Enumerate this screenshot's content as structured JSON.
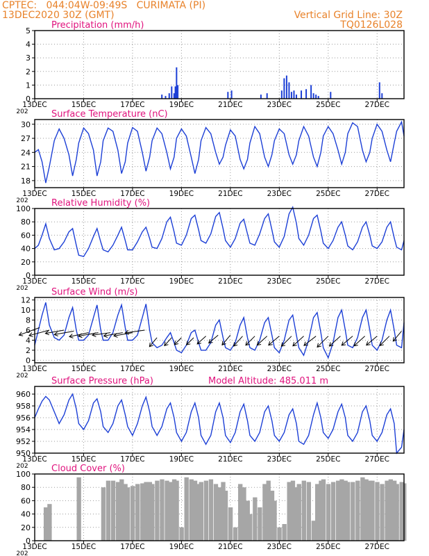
{
  "header": {
    "line1": "CPTEC:   044:04W-09:49S   CURIMATA (PI)",
    "line2": "13DEC2020 30Z (GMT)",
    "grid_note": "Vertical Grid Line: 30Z",
    "code": "TQ0126L028"
  },
  "colors": {
    "line": "#1c3fd6",
    "bar": "#1c3fd6",
    "title": "#e0127d",
    "header": "#e8822a",
    "cloud": "#a6a6a6",
    "grid": "#9a9a9a"
  },
  "x_axis": {
    "tick_labels": [
      "13DEC",
      "15DEC",
      "17DEC",
      "19DEC",
      "21DEC",
      "23DEC",
      "25DEC",
      "27DEC"
    ],
    "tick_days": [
      13,
      15,
      17,
      19,
      21,
      23,
      25,
      27
    ],
    "start_day": 13,
    "end_day": 28.1,
    "year_fragment": "202"
  },
  "chart_data": [
    {
      "type": "bar",
      "title": "Precipitation (mm/h)",
      "ylim": [
        0,
        5
      ],
      "yticks": [
        0,
        1,
        2,
        3,
        4,
        5
      ],
      "grid": true,
      "x": [
        18.2,
        18.35,
        18.5,
        18.6,
        18.7,
        18.75,
        18.8,
        18.85,
        20.9,
        21.05,
        22.25,
        22.5,
        23.1,
        23.2,
        23.3,
        23.4,
        23.5,
        23.6,
        23.7,
        23.9,
        24.1,
        24.3,
        24.4,
        24.5,
        24.6,
        25.1,
        27.1,
        27.2
      ],
      "values": [
        0.3,
        0.2,
        0.4,
        0.9,
        0.4,
        0.9,
        2.3,
        1.0,
        0.5,
        0.6,
        0.3,
        0.4,
        0.6,
        1.5,
        1.7,
        1.2,
        0.5,
        0.6,
        0.3,
        0.6,
        0.7,
        1.0,
        0.4,
        0.3,
        0.2,
        0.5,
        1.2,
        0.4
      ]
    },
    {
      "type": "line",
      "title": "Surface Temperature (nC)",
      "ylim": [
        16.5,
        31
      ],
      "yticks": [
        18,
        21,
        24,
        27,
        30
      ],
      "grid": true,
      "x": [
        13.0,
        13.15,
        13.3,
        13.45,
        13.6,
        13.8,
        14.0,
        14.2,
        14.4,
        14.55,
        14.7,
        14.8,
        15.0,
        15.2,
        15.4,
        15.55,
        15.7,
        15.8,
        16.0,
        16.2,
        16.4,
        16.55,
        16.7,
        16.8,
        17.0,
        17.2,
        17.4,
        17.55,
        17.7,
        17.8,
        18.0,
        18.2,
        18.4,
        18.55,
        18.7,
        18.8,
        19.0,
        19.2,
        19.4,
        19.55,
        19.7,
        19.8,
        20.0,
        20.2,
        20.4,
        20.55,
        20.7,
        20.8,
        21.0,
        21.2,
        21.4,
        21.55,
        21.7,
        21.8,
        22.0,
        22.2,
        22.4,
        22.55,
        22.7,
        22.8,
        23.0,
        23.2,
        23.4,
        23.55,
        23.7,
        23.8,
        24.0,
        24.2,
        24.4,
        24.55,
        24.7,
        24.8,
        25.0,
        25.2,
        25.4,
        25.55,
        25.7,
        25.8,
        26.0,
        26.2,
        26.4,
        26.55,
        26.7,
        26.8,
        27.0,
        27.2,
        27.4,
        27.55,
        27.7,
        27.8,
        28.0,
        28.1
      ],
      "values": [
        24.0,
        24.6,
        22.0,
        17.5,
        21.0,
        26.5,
        29.0,
        27.0,
        23.5,
        19.0,
        22.5,
        26.0,
        29.2,
        28.0,
        24.5,
        19.0,
        22.0,
        26.5,
        29.2,
        28.5,
        24.5,
        19.5,
        22.0,
        26.0,
        29.3,
        28.5,
        24.0,
        20.0,
        23.0,
        26.5,
        29.2,
        28.0,
        24.0,
        20.5,
        23.0,
        27.0,
        29.0,
        27.5,
        23.0,
        19.5,
        22.5,
        26.5,
        29.3,
        28.0,
        24.0,
        21.5,
        23.0,
        25.5,
        28.8,
        27.5,
        22.5,
        20.5,
        22.5,
        26.0,
        29.5,
        28.0,
        23.0,
        21.0,
        23.5,
        26.5,
        29.0,
        28.0,
        23.5,
        21.5,
        23.5,
        26.5,
        29.5,
        27.5,
        23.0,
        21.0,
        24.0,
        27.5,
        29.5,
        28.0,
        24.5,
        21.5,
        24.0,
        28.0,
        30.3,
        29.5,
        24.5,
        22.0,
        24.0,
        27.0,
        30.0,
        28.5,
        24.5,
        22.0,
        26.0,
        28.5,
        30.5,
        27.5
      ]
    },
    {
      "type": "line",
      "title": "Relative Humidity (%)",
      "ylim": [
        0,
        100
      ],
      "yticks": [
        0,
        20,
        40,
        60,
        80,
        100
      ],
      "grid": true,
      "x": [
        13.0,
        13.15,
        13.3,
        13.45,
        13.6,
        13.8,
        14.0,
        14.2,
        14.4,
        14.55,
        14.7,
        14.8,
        15.0,
        15.2,
        15.4,
        15.55,
        15.7,
        15.8,
        16.0,
        16.2,
        16.4,
        16.55,
        16.7,
        16.8,
        17.0,
        17.2,
        17.4,
        17.55,
        17.7,
        17.8,
        18.0,
        18.2,
        18.4,
        18.55,
        18.7,
        18.8,
        19.0,
        19.2,
        19.4,
        19.55,
        19.7,
        19.8,
        20.0,
        20.2,
        20.4,
        20.55,
        20.7,
        20.8,
        21.0,
        21.2,
        21.4,
        21.55,
        21.7,
        21.8,
        22.0,
        22.2,
        22.4,
        22.55,
        22.7,
        22.8,
        23.0,
        23.2,
        23.4,
        23.55,
        23.7,
        23.8,
        24.0,
        24.2,
        24.4,
        24.55,
        24.7,
        24.8,
        25.0,
        25.2,
        25.4,
        25.55,
        25.7,
        25.8,
        26.0,
        26.2,
        26.4,
        26.55,
        26.7,
        26.8,
        27.0,
        27.2,
        27.4,
        27.55,
        27.7,
        27.8,
        28.0,
        28.1
      ],
      "values": [
        40,
        45,
        60,
        77,
        55,
        38,
        40,
        50,
        65,
        70,
        45,
        30,
        28,
        40,
        58,
        70,
        50,
        38,
        35,
        45,
        60,
        72,
        52,
        38,
        38,
        50,
        65,
        72,
        55,
        42,
        40,
        55,
        80,
        87,
        65,
        48,
        45,
        60,
        85,
        90,
        68,
        52,
        48,
        62,
        88,
        94,
        70,
        52,
        42,
        55,
        78,
        84,
        62,
        48,
        45,
        62,
        85,
        92,
        68,
        50,
        42,
        58,
        92,
        102,
        78,
        55,
        45,
        60,
        85,
        90,
        66,
        48,
        40,
        52,
        72,
        80,
        60,
        44,
        38,
        50,
        72,
        80,
        60,
        44,
        40,
        50,
        72,
        80,
        56,
        42,
        38,
        52
      ]
    },
    {
      "type": "line",
      "title": "Surface Wind (m/s)",
      "ylim": [
        -0.5,
        12.5
      ],
      "yticks": [
        0,
        2,
        4,
        6,
        8,
        10,
        12
      ],
      "grid": true,
      "x": [
        13.0,
        13.15,
        13.3,
        13.45,
        13.6,
        13.8,
        14.0,
        14.2,
        14.4,
        14.55,
        14.7,
        14.8,
        15.0,
        15.2,
        15.4,
        15.55,
        15.7,
        15.8,
        16.0,
        16.2,
        16.4,
        16.55,
        16.7,
        16.8,
        17.0,
        17.2,
        17.4,
        17.55,
        17.7,
        17.8,
        18.0,
        18.2,
        18.4,
        18.55,
        18.7,
        18.8,
        19.0,
        19.2,
        19.4,
        19.55,
        19.7,
        19.8,
        20.0,
        20.2,
        20.4,
        20.55,
        20.7,
        20.8,
        21.0,
        21.2,
        21.4,
        21.55,
        21.7,
        21.8,
        22.0,
        22.2,
        22.4,
        22.55,
        22.7,
        22.8,
        23.0,
        23.2,
        23.4,
        23.55,
        23.7,
        23.8,
        24.0,
        24.2,
        24.4,
        24.55,
        24.7,
        24.8,
        25.0,
        25.2,
        25.4,
        25.55,
        25.7,
        25.8,
        26.0,
        26.2,
        26.4,
        26.55,
        26.7,
        26.8,
        27.0,
        27.2,
        27.4,
        27.55,
        27.7,
        27.8,
        28.0,
        28.1
      ],
      "values": [
        3.0,
        6.0,
        9.0,
        11.5,
        7.0,
        4.5,
        4.0,
        5.0,
        8.5,
        10.5,
        6.0,
        4.0,
        4.0,
        5.0,
        8.5,
        11.0,
        6.0,
        4.0,
        4.0,
        5.5,
        9.0,
        11.0,
        6.5,
        4.0,
        4.0,
        5.0,
        8.5,
        11.2,
        6.0,
        3.5,
        2.5,
        3.0,
        4.5,
        5.5,
        3.5,
        2.0,
        1.5,
        3.0,
        5.5,
        6.0,
        3.5,
        2.0,
        2.0,
        3.5,
        7.0,
        8.0,
        4.5,
        2.5,
        2.0,
        3.5,
        7.0,
        8.5,
        4.5,
        2.5,
        2.0,
        4.0,
        7.5,
        8.5,
        5.0,
        2.5,
        1.5,
        4.0,
        8.0,
        9.0,
        5.0,
        2.5,
        1.0,
        4.0,
        8.5,
        9.5,
        5.5,
        2.5,
        0.5,
        3.5,
        8.5,
        10.0,
        6.0,
        3.0,
        2.5,
        4.5,
        8.5,
        10.0,
        6.0,
        3.0,
        2.0,
        4.0,
        8.0,
        10.0,
        6.0,
        3.0,
        2.5,
        7.5
      ],
      "arrows": {
        "x": [
          13.2,
          13.6,
          14.2,
          14.6,
          15.2,
          15.6,
          16.1,
          16.6,
          17.0,
          17.5,
          18.0,
          18.6,
          19.0,
          19.5,
          20.0,
          20.5,
          21.0,
          21.5,
          22.0,
          22.5,
          23.0,
          23.5,
          24.0,
          24.5,
          25.0,
          25.5,
          26.0,
          26.5,
          27.0,
          27.5,
          28.0
        ],
        "speed": [
          7.5,
          7.2,
          6.5,
          6.8,
          6.7,
          6.9,
          6.3,
          6.6,
          6.5,
          6.8,
          4.0,
          3.7,
          3.4,
          3.5,
          4.0,
          4.2,
          4.4,
          4.6,
          4.4,
          4.6,
          4.8,
          4.9,
          5.0,
          5.2,
          5.3,
          5.1,
          4.9,
          5.0,
          4.8,
          4.6,
          4.5
        ],
        "dir": [
          70,
          75,
          80,
          80,
          78,
          80,
          82,
          80,
          80,
          82,
          40,
          42,
          45,
          45,
          48,
          50,
          40,
          42,
          45,
          48,
          50,
          45,
          48,
          52,
          45,
          48,
          50,
          48,
          50,
          45,
          40
        ],
        "y": [
          6.5,
          6.0,
          6.0,
          5.8,
          5.5,
          5.5,
          5.5,
          5.5,
          5.5,
          6.0,
          4.5,
          4.5,
          4.5,
          4.5,
          4.8,
          5.0,
          5.0,
          4.8,
          4.8,
          4.8,
          4.8,
          4.8,
          4.8,
          4.8,
          4.8,
          4.8,
          4.8,
          4.8,
          4.8,
          4.8,
          5.8
        ]
      }
    },
    {
      "type": "line",
      "title": "Surface Pressure (hPa)",
      "annotation": "Model Altitude: 485.011 m",
      "ylim": [
        950,
        961.3
      ],
      "yticks": [
        950,
        952,
        954,
        956,
        958,
        960
      ],
      "grid": true,
      "x": [
        13.0,
        13.15,
        13.3,
        13.45,
        13.6,
        13.8,
        14.0,
        14.2,
        14.4,
        14.55,
        14.7,
        14.8,
        15.0,
        15.2,
        15.4,
        15.55,
        15.7,
        15.8,
        16.0,
        16.2,
        16.4,
        16.55,
        16.7,
        16.8,
        17.0,
        17.2,
        17.4,
        17.55,
        17.7,
        17.8,
        18.0,
        18.2,
        18.4,
        18.55,
        18.7,
        18.8,
        19.0,
        19.2,
        19.4,
        19.55,
        19.7,
        19.8,
        20.0,
        20.2,
        20.4,
        20.55,
        20.7,
        20.8,
        21.0,
        21.2,
        21.4,
        21.55,
        21.7,
        21.8,
        22.0,
        22.2,
        22.4,
        22.55,
        22.7,
        22.8,
        23.0,
        23.2,
        23.4,
        23.55,
        23.7,
        23.8,
        24.0,
        24.2,
        24.4,
        24.55,
        24.7,
        24.8,
        25.0,
        25.2,
        25.4,
        25.55,
        25.7,
        25.8,
        26.0,
        26.2,
        26.4,
        26.55,
        26.7,
        26.8,
        27.0,
        27.2,
        27.4,
        27.55,
        27.7,
        27.8,
        28.0,
        28.1
      ],
      "values": [
        956.0,
        957.5,
        958.8,
        959.6,
        959.0,
        957.0,
        955.0,
        956.5,
        959.0,
        960.0,
        957.5,
        955.0,
        954.0,
        955.5,
        958.5,
        959.2,
        957.0,
        954.5,
        953.5,
        955.0,
        958.0,
        959.0,
        956.5,
        954.5,
        953.0,
        955.0,
        958.0,
        959.5,
        957.0,
        954.5,
        953.0,
        954.5,
        957.5,
        958.5,
        956.0,
        953.5,
        952.0,
        953.5,
        957.0,
        958.5,
        956.0,
        953.0,
        951.5,
        953.0,
        957.0,
        958.5,
        956.0,
        953.0,
        951.8,
        953.5,
        957.0,
        958.3,
        955.5,
        953.0,
        952.0,
        953.5,
        957.0,
        958.0,
        955.5,
        953.0,
        952.0,
        953.5,
        956.5,
        957.5,
        955.0,
        952.0,
        951.5,
        953.0,
        956.5,
        958.5,
        956.0,
        953.5,
        952.5,
        954.0,
        957.0,
        958.3,
        956.0,
        953.0,
        952.0,
        953.5,
        957.0,
        958.0,
        955.5,
        953.0,
        952.0,
        953.5,
        956.5,
        957.5,
        955.0,
        950.0,
        951.0,
        954.0
      ]
    },
    {
      "type": "area",
      "title": "Cloud Cover (%)",
      "ylim": [
        0,
        100
      ],
      "yticks": [
        0,
        20,
        40,
        60,
        80,
        100
      ],
      "grid": true,
      "x": [
        13.0,
        13.15,
        13.3,
        13.45,
        13.6,
        13.8,
        14.0,
        14.2,
        14.4,
        14.55,
        14.7,
        14.8,
        15.0,
        15.2,
        15.4,
        15.55,
        15.7,
        15.8,
        16.0,
        16.2,
        16.4,
        16.55,
        16.7,
        16.8,
        17.0,
        17.2,
        17.4,
        17.55,
        17.7,
        17.8,
        18.0,
        18.2,
        18.4,
        18.55,
        18.7,
        18.8,
        19.0,
        19.2,
        19.4,
        19.55,
        19.7,
        19.8,
        20.0,
        20.2,
        20.4,
        20.55,
        20.7,
        20.8,
        21.0,
        21.2,
        21.4,
        21.55,
        21.7,
        21.8,
        22.0,
        22.2,
        22.4,
        22.55,
        22.7,
        22.8,
        23.0,
        23.2,
        23.4,
        23.55,
        23.7,
        23.8,
        24.0,
        24.2,
        24.4,
        24.55,
        24.7,
        24.8,
        25.0,
        25.2,
        25.4,
        25.55,
        25.7,
        25.8,
        26.0,
        26.2,
        26.4,
        26.55,
        26.7,
        26.8,
        27.0,
        27.2,
        27.4,
        27.55,
        27.7,
        27.8,
        28.0,
        28.1
      ],
      "values": [
        0,
        0,
        0,
        50,
        55,
        0,
        0,
        0,
        0,
        0,
        0,
        95,
        0,
        0,
        0,
        0,
        0,
        80,
        90,
        90,
        88,
        92,
        85,
        80,
        82,
        85,
        86,
        88,
        88,
        85,
        90,
        92,
        90,
        88,
        92,
        90,
        20,
        95,
        92,
        90,
        85,
        88,
        90,
        92,
        85,
        80,
        88,
        75,
        50,
        20,
        85,
        80,
        60,
        40,
        65,
        50,
        85,
        90,
        75,
        60,
        20,
        25,
        88,
        90,
        80,
        85,
        90,
        88,
        30,
        85,
        90,
        92,
        85,
        88,
        90,
        92,
        90,
        88,
        88,
        90,
        95,
        92,
        90,
        90,
        88,
        85,
        90,
        92,
        90,
        85,
        88,
        86
      ]
    }
  ]
}
